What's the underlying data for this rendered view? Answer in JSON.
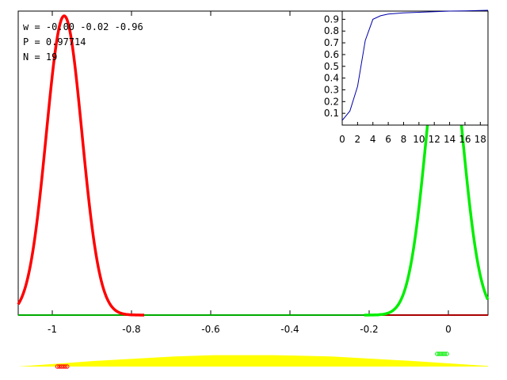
{
  "info": {
    "w_line": "w = -0.00 -0.02 -0.96",
    "p_line": "P = 0.97714",
    "n_line": "N = 19"
  },
  "colors": {
    "class_a": "#ff0000",
    "class_b": "#00ee00",
    "class_a_baseline": "#aa0000",
    "class_b_baseline": "#00aa00",
    "prior": "#ffff00",
    "inset_line": "#0000aa"
  },
  "chart_data": [
    {
      "type": "line",
      "role": "main",
      "xlim": [
        -1.1,
        0.1
      ],
      "x_ticks": [
        -1,
        -0.8,
        -0.6,
        -0.4,
        -0.2,
        0
      ],
      "x_tick_labels": [
        "-1",
        "-0.8",
        "-0.6",
        "-0.4",
        "-0.2",
        "0"
      ],
      "series": [
        {
          "key": "class_a",
          "mean": -0.97,
          "sd": 0.045
        },
        {
          "key": "class_b",
          "mean": -0.01,
          "sd": 0.045
        }
      ],
      "samples": {
        "class_a": [
          -1.0,
          -0.995,
          -0.99,
          -0.985,
          -0.98,
          -0.975
        ],
        "class_b": [
          -0.03,
          -0.025,
          -0.02,
          -0.015,
          -0.01,
          -0.005
        ]
      },
      "prior": [
        {
          "x": -1.1,
          "y": 0.0
        },
        {
          "x": -0.9,
          "y": 0.45
        },
        {
          "x": -0.7,
          "y": 0.8
        },
        {
          "x": -0.6,
          "y": 0.9
        },
        {
          "x": -0.45,
          "y": 0.9
        },
        {
          "x": -0.3,
          "y": 0.8
        },
        {
          "x": -0.1,
          "y": 0.45
        },
        {
          "x": 0.1,
          "y": 0.05
        }
      ]
    },
    {
      "type": "line",
      "role": "inset",
      "xlim": [
        0,
        19
      ],
      "ylim": [
        0,
        0.97
      ],
      "x_ticks": [
        0,
        2,
        4,
        6,
        8,
        10,
        12,
        14,
        16,
        18
      ],
      "x_tick_labels": [
        "0",
        "2",
        "4",
        "6",
        "8",
        "10",
        "12",
        "14",
        "16",
        "18"
      ],
      "y_ticks": [
        0.1,
        0.2,
        0.3,
        0.4,
        0.5,
        0.6,
        0.7,
        0.8,
        0.9
      ],
      "y_tick_labels": [
        "0.1",
        "0.2",
        "0.3",
        "0.4",
        "0.5",
        "0.6",
        "0.7",
        "0.8",
        "0.9"
      ],
      "x": [
        0,
        1,
        2,
        3,
        4,
        5,
        6,
        7,
        8,
        10,
        12,
        14,
        16,
        18,
        19
      ],
      "y": [
        0.04,
        0.12,
        0.33,
        0.72,
        0.9,
        0.93,
        0.945,
        0.95,
        0.955,
        0.96,
        0.965,
        0.97,
        0.972,
        0.975,
        0.977
      ]
    }
  ]
}
